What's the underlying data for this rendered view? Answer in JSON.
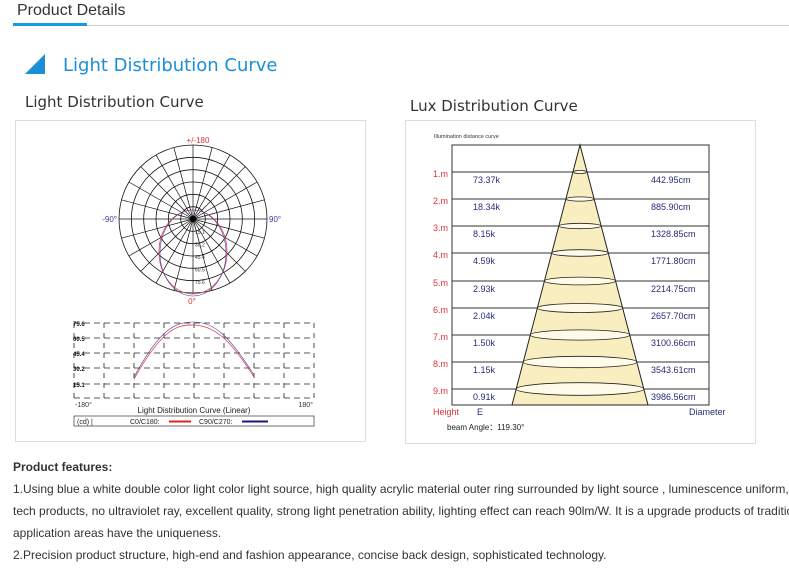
{
  "tab": {
    "label": "Product Details"
  },
  "section": {
    "title": "Light Distribution Curve"
  },
  "left_panel": {
    "title": "Light Distribution Curve",
    "polar": {
      "top_label": "+/-180",
      "left_label": "-90°",
      "right_label": "90°",
      "bottom_label": "0°",
      "ring_labels": [
        "15.1",
        "30.2",
        "45.4",
        "60.5",
        "75.6"
      ]
    },
    "linear": {
      "y_labels": [
        "75.6",
        "60.5",
        "45.4",
        "30.2",
        "15.1"
      ],
      "x_min_label": "-180°",
      "x_max_label": "180°",
      "title": "Light Distribution Curve (Linear)",
      "unit": "(cd) |",
      "legend": [
        {
          "label": "C0/C180:",
          "color": "#e02020"
        },
        {
          "label": "C90/C270:",
          "color": "#1a1a80"
        }
      ]
    }
  },
  "right_panel": {
    "title": "Lux Distribution Curve",
    "caption": "Illumination distance curve",
    "rows": [
      {
        "height": "1.m",
        "e": "73.37k",
        "diameter": "442.95cm"
      },
      {
        "height": "2.m",
        "e": "18.34k",
        "diameter": "885.90cm"
      },
      {
        "height": "3.m",
        "e": "8.15k",
        "diameter": "1328.85cm"
      },
      {
        "height": "4.m",
        "e": "4.59k",
        "diameter": "1771.80cm"
      },
      {
        "height": "5.m",
        "e": "2.93k",
        "diameter": "2214.75cm"
      },
      {
        "height": "6.m",
        "e": "2.04k",
        "diameter": "2657.70cm"
      },
      {
        "height": "7.m",
        "e": "1.50k",
        "diameter": "3100.66cm"
      },
      {
        "height": "8.m",
        "e": "1.15k",
        "diameter": "3543.61cm"
      },
      {
        "height": "9.m",
        "e": "0.91k",
        "diameter": "3986.56cm"
      }
    ],
    "height_label": "Height",
    "e_label": "E",
    "diameter_label": "Diameter",
    "beam_angle": "beam Angle：119.30°"
  },
  "features": {
    "heading": "Product features:",
    "lines": [
      "1.Using blue a white double color light color light source, high quality acrylic material outer ring surrounded by light source , luminescence uniform, use of high-",
      "tech products, no ultraviolet ray, excellent quality, strong light penetration ability, lighting effect can reach 90lm/W. It is a upgrade products of traditional, in the",
      "application areas have the uniqueness.",
      "2.Precision product structure, high-end and fashion appearance, concise back design, sophisticated technology."
    ]
  },
  "colors": {
    "accent": "#1a9ae0",
    "height_red": "#e0303a",
    "value_blue": "#2a2a7a",
    "cone_fill": "#f8eec0"
  }
}
